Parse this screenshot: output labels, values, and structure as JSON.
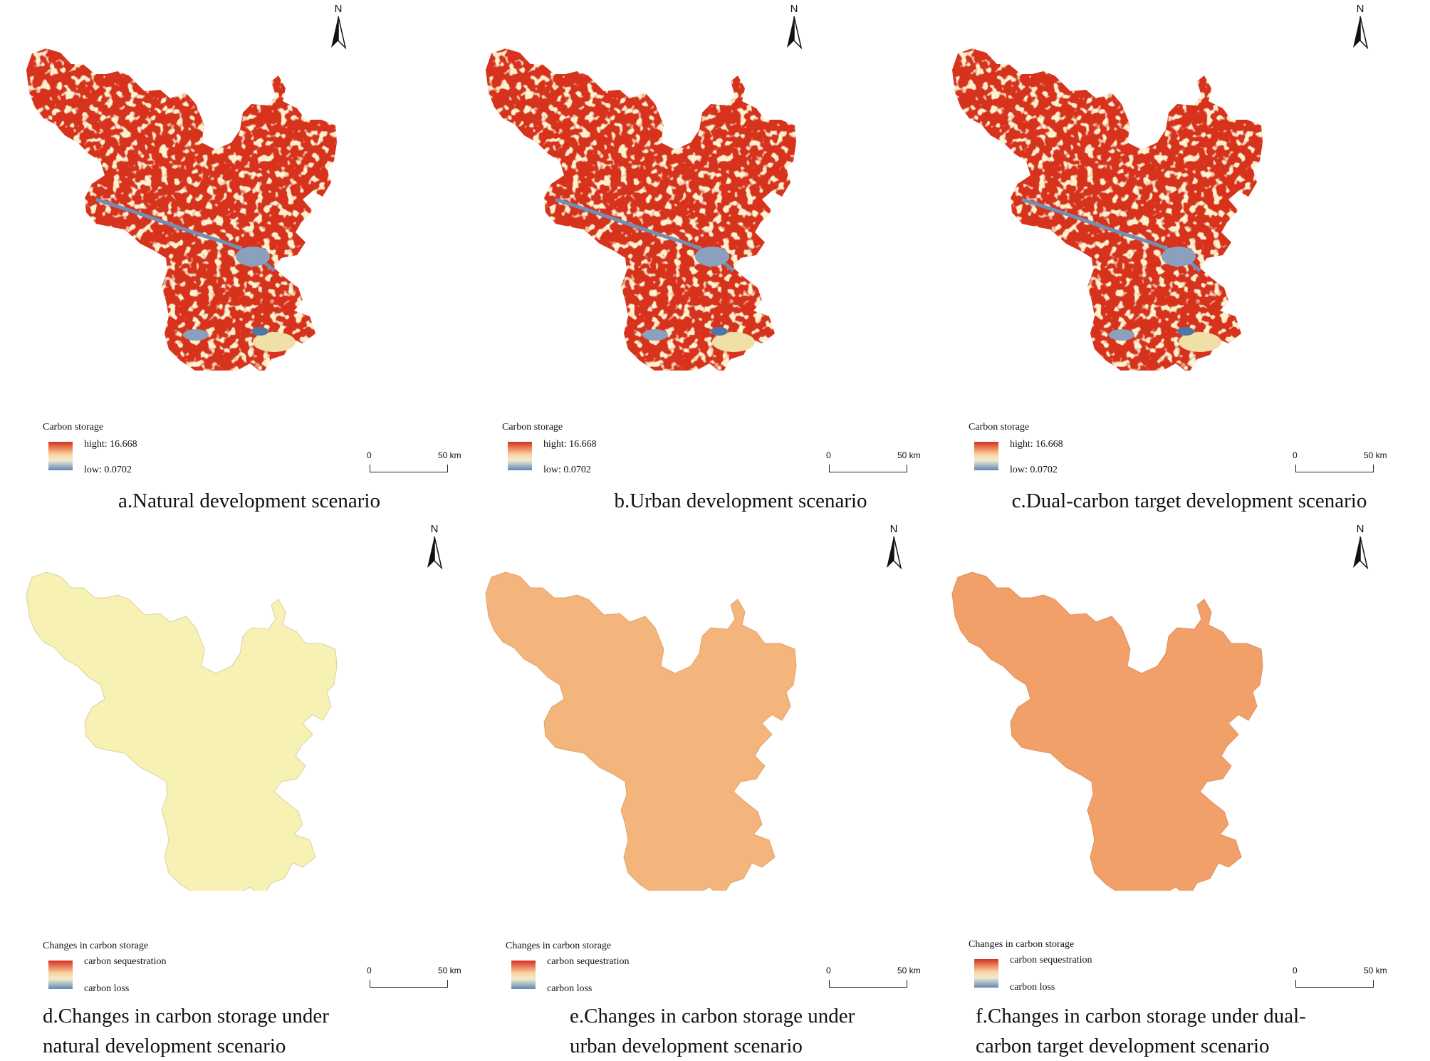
{
  "north_label": "N",
  "scale": {
    "zero": "0",
    "distance": "50 km"
  },
  "colors": {
    "high_red": "#d7301f",
    "pale": "#f3dfa0",
    "low_blue": "#7a96b8",
    "change_a": "#f7f1b3",
    "change_b": "#f4b57c",
    "change_c": "#f2a06a"
  },
  "top_legend": {
    "title": "Carbon storage",
    "high": "hight:  16.668",
    "low": "low:  0.0702"
  },
  "bottom_legend": {
    "title": "Changes in carbon storage",
    "high": "carbon sequestration",
    "low": "carbon loss"
  },
  "panels": [
    {
      "caption": "a.Natural development scenario"
    },
    {
      "caption": "b.Urban development scenario"
    },
    {
      "caption": "c.Dual-carbon target development scenario"
    },
    {
      "caption_line1": "d.Changes in carbon storage under",
      "caption_line2": "natural development scenario"
    },
    {
      "caption_line1": "e.Changes in carbon storage under",
      "caption_line2": "urban development scenario"
    },
    {
      "caption_line1": "f.Changes in carbon storage under dual-",
      "caption_line2": "carbon target development scenario"
    }
  ]
}
